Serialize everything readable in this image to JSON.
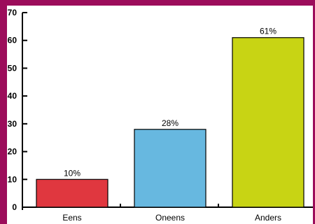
{
  "frame_color": "#9c0d5b",
  "chart_data": {
    "type": "bar",
    "categories": [
      "Eens",
      "Oneens",
      "Anders"
    ],
    "values": [
      10,
      28,
      61
    ],
    "data_labels": [
      "10%",
      "28%",
      "61%"
    ],
    "colors": [
      "#e0373f",
      "#67b8e0",
      "#c8d414"
    ],
    "title": "",
    "xlabel": "",
    "ylabel": "",
    "ylim": [
      0,
      70
    ],
    "yticks": [
      0,
      10,
      20,
      30,
      40,
      50,
      60,
      70
    ],
    "grid": false,
    "legend": "none"
  }
}
